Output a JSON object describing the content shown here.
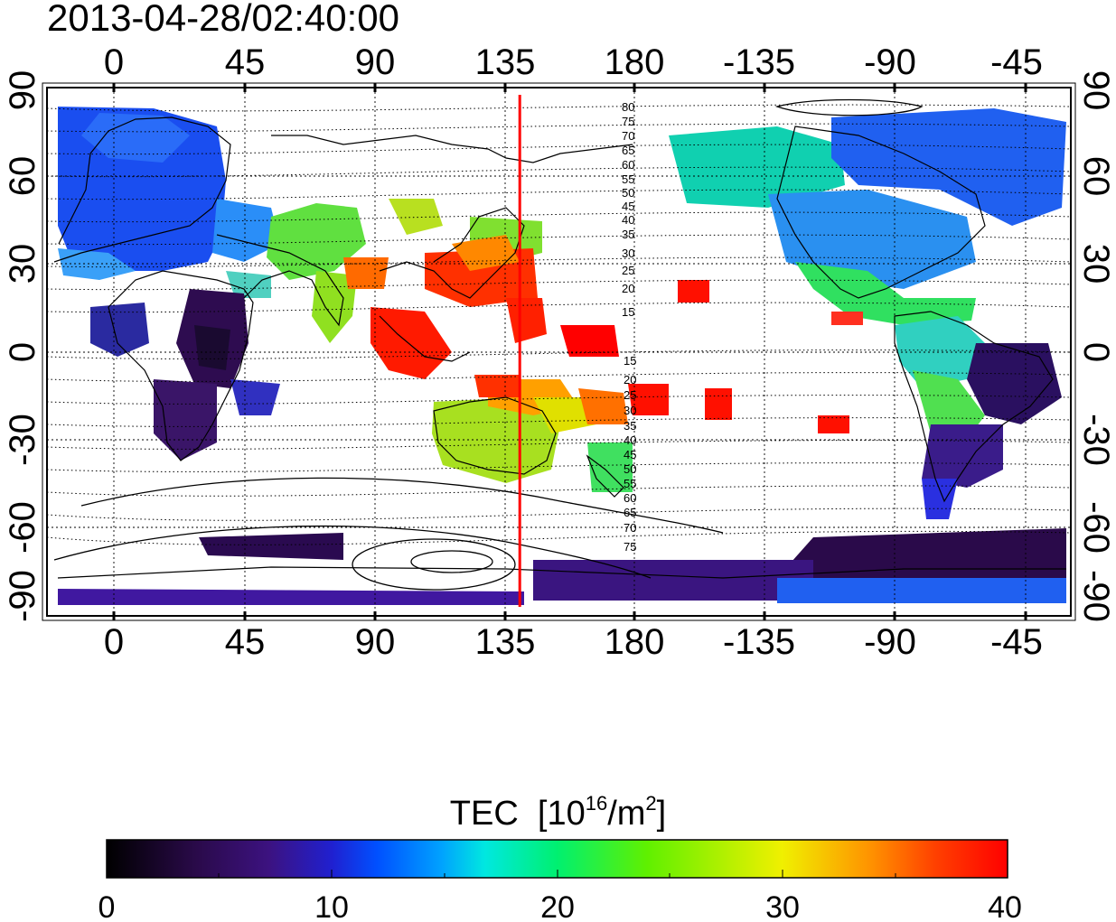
{
  "title": "2013-04-28/02:40:00",
  "map": {
    "top_lon_labels": [
      "0",
      "45",
      "90",
      "135",
      "180",
      "-135",
      "-90",
      "-45"
    ],
    "bottom_lon_labels": [
      "0",
      "45",
      "90",
      "135",
      "180",
      "-135",
      "-90",
      "-45"
    ],
    "left_lat_labels": [
      "90",
      "60",
      "30",
      "0",
      "-30",
      "-60",
      "-90"
    ],
    "right_lat_labels": [
      "90",
      "60",
      "30",
      "0",
      "-30",
      "-60",
      "-90"
    ],
    "north_contour_labels": [
      "80",
      "75",
      "70",
      "65",
      "60",
      "55",
      "50",
      "45",
      "40",
      "35",
      "30",
      "25",
      "20",
      "15"
    ],
    "south_contour_labels": [
      "15",
      "20",
      "25",
      "30",
      "35",
      "40",
      "45",
      "50",
      "55",
      "60",
      "65",
      "70",
      "75"
    ],
    "marker_longitude": 140,
    "marker_color": "#ff0000"
  },
  "colorbar": {
    "label_text": "TEC",
    "unit_open": "[10",
    "unit_exp1": "16",
    "unit_mid": "/m",
    "unit_exp2": "2",
    "unit_close": "]",
    "ticks": [
      "0",
      "10",
      "20",
      "30",
      "40"
    ],
    "range": [
      0,
      40
    ],
    "colors": [
      "#000000",
      "#2a0a4a",
      "#3c1280",
      "#2020d0",
      "#0050ff",
      "#00a0ff",
      "#00e8e0",
      "#00f070",
      "#60f000",
      "#f0f000",
      "#ff9000",
      "#ff4000",
      "#ff0000"
    ]
  }
}
